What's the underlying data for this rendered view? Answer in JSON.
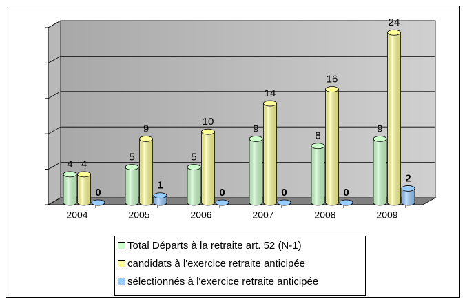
{
  "chart_data": {
    "type": "bar3d",
    "categories": [
      "2004",
      "2005",
      "2006",
      "2007",
      "2008",
      "2009"
    ],
    "series": [
      {
        "name": "Total Départs à la retraite art. 52 (N-1)",
        "color": "#ccffcc",
        "values": [
          4,
          5,
          5,
          9,
          8,
          9
        ]
      },
      {
        "name": "candidats à l'exercice retraite anticipée",
        "color": "#ffff99",
        "values": [
          4,
          9,
          10,
          14,
          16,
          24
        ]
      },
      {
        "name": "sélectionnés à l'exercice retraite anticipée",
        "color": "#99ccff",
        "values": [
          0,
          1,
          0,
          0,
          0,
          2
        ]
      }
    ],
    "ylim": [
      0,
      25
    ],
    "yticks": [
      0,
      5,
      10,
      15,
      20,
      25
    ],
    "grid": true,
    "legend": "bottom"
  }
}
